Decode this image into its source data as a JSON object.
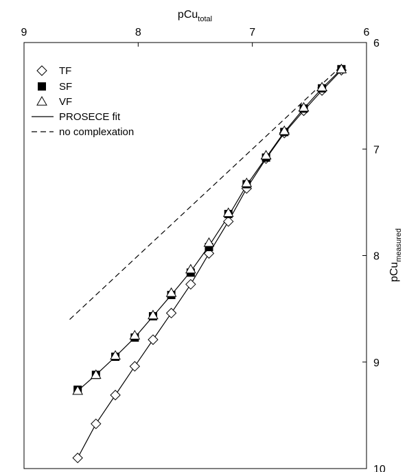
{
  "chart_data": {
    "type": "line",
    "xlabel": {
      "main": "pCu",
      "sub": "total"
    },
    "ylabel": {
      "main": "pCu",
      "sub": "measured"
    },
    "xlim": [
      9,
      6
    ],
    "ylim": [
      6,
      10
    ],
    "x_ticks": [
      9,
      8,
      7,
      6
    ],
    "y_ticks": [
      6,
      7,
      8,
      9,
      10
    ],
    "x_axis_position": "top",
    "y_axis_position": "right",
    "grid": false,
    "legend_placement": "top-left",
    "series": [
      {
        "name": "TF",
        "marker": "diamond-open",
        "x": [
          8.53,
          8.37,
          8.2,
          8.03,
          7.87,
          7.71,
          7.54,
          7.38,
          7.21,
          7.05,
          6.88,
          6.72,
          6.55,
          6.39,
          6.22
        ],
        "y": [
          9.9,
          9.58,
          9.31,
          9.04,
          8.79,
          8.54,
          8.27,
          7.98,
          7.68,
          7.37,
          7.09,
          6.85,
          6.64,
          6.45,
          6.26
        ]
      },
      {
        "name": "SF",
        "marker": "square-filled",
        "x": [
          8.53,
          8.37,
          8.2,
          8.03,
          7.87,
          7.71,
          7.54,
          7.38,
          7.21,
          7.05,
          6.88,
          6.72,
          6.55,
          6.39,
          6.22
        ],
        "y": [
          9.26,
          9.12,
          8.95,
          8.77,
          8.57,
          8.37,
          8.16,
          7.92,
          7.61,
          7.33,
          7.08,
          6.84,
          6.62,
          6.43,
          6.25
        ]
      },
      {
        "name": "VF",
        "marker": "triangle-open",
        "x": [
          8.53,
          8.37,
          8.2,
          8.03,
          7.87,
          7.71,
          7.54,
          7.38,
          7.21,
          7.05,
          6.88,
          6.72,
          6.55,
          6.39,
          6.22
        ],
        "y": [
          9.27,
          9.12,
          8.94,
          8.75,
          8.56,
          8.35,
          8.13,
          7.88,
          7.6,
          7.32,
          7.06,
          6.83,
          6.61,
          6.42,
          6.25
        ]
      },
      {
        "name": "PROSECE fit",
        "style": "solid",
        "x": [
          8.53,
          8.37,
          8.2,
          8.03,
          7.87,
          7.71,
          7.54,
          7.38,
          7.21,
          7.05,
          6.88,
          6.72,
          6.55,
          6.39,
          6.22
        ],
        "y": [
          9.27,
          9.12,
          8.95,
          8.77,
          8.57,
          8.37,
          8.15,
          7.91,
          7.63,
          7.34,
          7.08,
          6.84,
          6.62,
          6.43,
          6.25
        ]
      },
      {
        "name": "no complexation",
        "style": "dashed",
        "x": [
          8.6,
          6.2
        ],
        "y": [
          8.6,
          6.2
        ]
      }
    ]
  }
}
